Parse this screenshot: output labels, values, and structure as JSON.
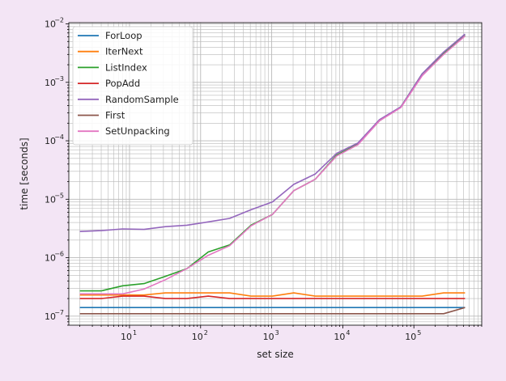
{
  "colors": {
    "background": "#f3e5f5",
    "plot_bg": "#ffffff",
    "grid": "#b9b9b9"
  },
  "chart_data": {
    "type": "line",
    "xlabel": "set size",
    "ylabel": "time [seconds]",
    "xscale": "log",
    "yscale": "log",
    "xlim": [
      1.4,
      900000
    ],
    "ylim": [
      7e-08,
      0.0105
    ],
    "grid": true,
    "legend_position": "top-left",
    "x_ticks": [
      {
        "value": 10,
        "base": "10",
        "exp": "1"
      },
      {
        "value": 100,
        "base": "10",
        "exp": "2"
      },
      {
        "value": 1000,
        "base": "10",
        "exp": "3"
      },
      {
        "value": 10000,
        "base": "10",
        "exp": "4"
      },
      {
        "value": 100000,
        "base": "10",
        "exp": "5"
      }
    ],
    "y_ticks": [
      {
        "value": 1e-07,
        "base": "10",
        "exp": "−7"
      },
      {
        "value": 1e-06,
        "base": "10",
        "exp": "−6"
      },
      {
        "value": 1e-05,
        "base": "10",
        "exp": "−5"
      },
      {
        "value": 0.0001,
        "base": "10",
        "exp": "−4"
      },
      {
        "value": 0.001,
        "base": "10",
        "exp": "−3"
      },
      {
        "value": 0.01,
        "base": "10",
        "exp": "−2"
      }
    ],
    "x": [
      2,
      4,
      8,
      16,
      32,
      64,
      128,
      256,
      512,
      1024,
      2048,
      4096,
      8192,
      16384,
      32768,
      65536,
      131072,
      262144,
      524288
    ],
    "series": [
      {
        "name": "ForLoop",
        "color": "#1f77b4",
        "values": [
          1.4e-07,
          1.4e-07,
          1.4e-07,
          1.4e-07,
          1.4e-07,
          1.4e-07,
          1.4e-07,
          1.4e-07,
          1.4e-07,
          1.4e-07,
          1.4e-07,
          1.4e-07,
          1.4e-07,
          1.4e-07,
          1.4e-07,
          1.4e-07,
          1.4e-07,
          1.4e-07,
          1.4e-07
        ]
      },
      {
        "name": "IterNext",
        "color": "#ff7f0e",
        "values": [
          2.3e-07,
          2.3e-07,
          2.3e-07,
          2.3e-07,
          2.5e-07,
          2.5e-07,
          2.5e-07,
          2.5e-07,
          2.2e-07,
          2.2e-07,
          2.5e-07,
          2.2e-07,
          2.2e-07,
          2.2e-07,
          2.2e-07,
          2.2e-07,
          2.2e-07,
          2.5e-07,
          2.5e-07
        ]
      },
      {
        "name": "ListIndex",
        "color": "#2ca02c",
        "values": [
          2.7e-07,
          2.7e-07,
          3.3e-07,
          3.6e-07,
          4.8e-07,
          6.5e-07,
          1.25e-06,
          1.65e-06,
          3.6e-06,
          5.5e-06,
          1.4e-05,
          2.2e-05,
          5.7e-05,
          8.8e-05,
          0.00022,
          0.00038,
          0.0014,
          0.0031,
          0.0064
        ]
      },
      {
        "name": "PopAdd",
        "color": "#d62728",
        "values": [
          2e-07,
          2e-07,
          2.2e-07,
          2.2e-07,
          2e-07,
          2e-07,
          2.2e-07,
          2e-07,
          2e-07,
          2e-07,
          2e-07,
          2e-07,
          2e-07,
          2e-07,
          2e-07,
          2e-07,
          2e-07,
          2e-07,
          2e-07
        ]
      },
      {
        "name": "RandomSample",
        "color": "#9467bd",
        "values": [
          2.8e-06,
          2.9e-06,
          3.1e-06,
          3.05e-06,
          3.4e-06,
          3.6e-06,
          4.1e-06,
          4.7e-06,
          6.6e-06,
          9e-06,
          1.8e-05,
          2.7e-05,
          6.1e-05,
          9.2e-05,
          0.00023,
          0.00038,
          0.0014,
          0.0033,
          0.0067
        ]
      },
      {
        "name": "First",
        "color": "#8c564b",
        "values": [
          1.1e-07,
          1.1e-07,
          1.1e-07,
          1.1e-07,
          1.1e-07,
          1.1e-07,
          1.1e-07,
          1.1e-07,
          1.1e-07,
          1.1e-07,
          1.1e-07,
          1.1e-07,
          1.1e-07,
          1.1e-07,
          1.1e-07,
          1.1e-07,
          1.1e-07,
          1.1e-07,
          1.4e-07
        ]
      },
      {
        "name": "SetUnpacking",
        "color": "#e377c2",
        "values": [
          2.4e-07,
          2.4e-07,
          2.4e-07,
          2.9e-07,
          4.2e-07,
          6.5e-07,
          1.1e-06,
          1.6e-06,
          3.5e-06,
          5.5e-06,
          1.4e-05,
          2.2e-05,
          5.5e-05,
          8.6e-05,
          0.00022,
          0.00037,
          0.0013,
          0.003,
          0.0062
        ]
      }
    ]
  }
}
